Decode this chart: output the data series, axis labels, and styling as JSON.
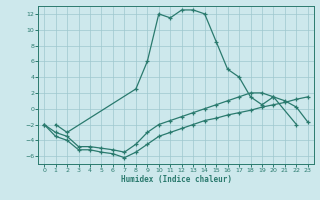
{
  "xlabel": "Humidex (Indice chaleur)",
  "ylim": [
    -7,
    13
  ],
  "xlim": [
    -0.5,
    23.5
  ],
  "yticks": [
    -6,
    -4,
    -2,
    0,
    2,
    4,
    6,
    8,
    10,
    12
  ],
  "xticks": [
    0,
    1,
    2,
    3,
    4,
    5,
    6,
    7,
    8,
    9,
    10,
    11,
    12,
    13,
    14,
    15,
    16,
    17,
    18,
    19,
    20,
    21,
    22,
    23
  ],
  "line_color": "#2a7a6e",
  "bg_color": "#cde8ec",
  "grid_color": "#9fc8ce",
  "main_curve_x": [
    1,
    2,
    8,
    9,
    10,
    11,
    12,
    13,
    14,
    15,
    16,
    17,
    18,
    19,
    20,
    22
  ],
  "main_curve_y": [
    -2,
    -3,
    2.5,
    6,
    12,
    11.5,
    12.5,
    12.5,
    12,
    8.5,
    5,
    4,
    1.5,
    0.5,
    1.5,
    -2
  ],
  "upper_line_x": [
    0,
    1,
    2,
    3,
    4,
    5,
    6,
    7,
    8,
    9,
    10,
    11,
    12,
    13,
    14,
    15,
    16,
    17,
    18,
    19,
    20,
    21,
    22,
    23
  ],
  "upper_line_y": [
    -2,
    -3,
    -3.5,
    -4.8,
    -4.8,
    -5,
    -5.2,
    -5.5,
    -4.5,
    -3,
    -2,
    -1.5,
    -1,
    -0.5,
    0,
    0.5,
    1,
    1.5,
    2,
    2,
    1.5,
    1,
    0.2,
    -1.7
  ],
  "lower_line_x": [
    0,
    1,
    2,
    3,
    4,
    5,
    6,
    7,
    8,
    9,
    10,
    11,
    12,
    13,
    14,
    15,
    16,
    17,
    18,
    19,
    20,
    21,
    22,
    23
  ],
  "lower_line_y": [
    -2,
    -3.5,
    -4,
    -5.2,
    -5.2,
    -5.5,
    -5.7,
    -6.2,
    -5.5,
    -4.5,
    -3.5,
    -3,
    -2.5,
    -2,
    -1.5,
    -1.2,
    -0.8,
    -0.5,
    -0.2,
    0.2,
    0.5,
    0.8,
    1.2,
    1.5
  ]
}
